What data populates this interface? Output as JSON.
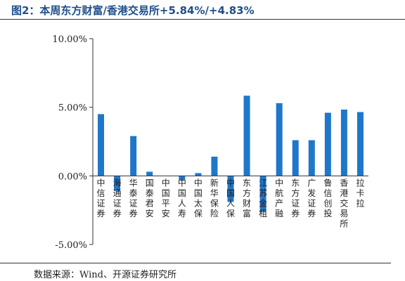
{
  "title": "图2：本周东方财富/香港交易所+5.84%/+4.83%",
  "source": "数据来源：Wind、开源证券研究所",
  "chart_data": {
    "type": "bar",
    "categories": [
      "中信证券",
      "海通证券",
      "华泰证券",
      "国泰君安",
      "中国平安",
      "中国人寿",
      "中国太保",
      "新华保险",
      "中国人保",
      "东方财富",
      "江苏金租",
      "中航产融",
      "东方证券",
      "广发证券",
      "鲁信创投",
      "香港交易所",
      "拉卡拉"
    ],
    "values": [
      4.5,
      -1.1,
      2.9,
      0.3,
      0.0,
      -0.3,
      0.2,
      1.4,
      -1.9,
      5.84,
      -2.6,
      5.3,
      2.6,
      2.6,
      4.6,
      4.83,
      4.65
    ],
    "ylim": [
      -5,
      10
    ],
    "yticks": [
      "-5.00%",
      "0.00%",
      "5.00%",
      "10.00%"
    ],
    "ytick_values": [
      -5,
      0,
      5,
      10
    ],
    "bar_color": "#1f77c9",
    "title": "",
    "xlabel": "",
    "ylabel": ""
  }
}
